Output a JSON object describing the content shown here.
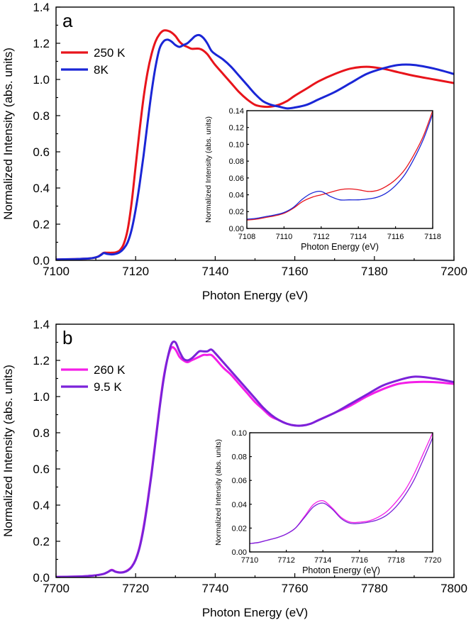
{
  "chart_data": [
    {
      "id": "a-main",
      "type": "line",
      "panel_label": "a",
      "xlabel": "Photon Energy (eV)",
      "ylabel": "Normalized Intensity (abs. units)",
      "xlim": [
        7100,
        7200
      ],
      "ylim": [
        0,
        1.4
      ],
      "xticks": [
        7100,
        7120,
        7140,
        7160,
        7180,
        7200
      ],
      "yticks": [
        0.0,
        0.2,
        0.4,
        0.6,
        0.8,
        1.0,
        1.2,
        1.4
      ],
      "xtick_labels": [
        "7100",
        "7120",
        "7140",
        "7160",
        "7180",
        "7200"
      ],
      "ytick_labels": [
        "0.0",
        "0.2",
        "0.4",
        "0.6",
        "0.8",
        "1.0",
        "1.2",
        "1.4"
      ],
      "legend": "upper-left",
      "series": [
        {
          "name": "250 K",
          "color": "#e8141b",
          "x": [
            7100,
            7106,
            7109,
            7110.5,
            7111.5,
            7112,
            7113,
            7114,
            7115,
            7116,
            7117,
            7118,
            7119,
            7120,
            7121,
            7122,
            7123,
            7124,
            7125,
            7126,
            7127,
            7128,
            7129,
            7130,
            7131,
            7132,
            7133,
            7134,
            7135,
            7136,
            7137,
            7138,
            7139,
            7140,
            7142,
            7144,
            7146,
            7148,
            7150,
            7152,
            7154,
            7156,
            7158,
            7160,
            7163,
            7166,
            7170,
            7174,
            7178,
            7182,
            7186,
            7190,
            7195,
            7200
          ],
          "values": [
            0.005,
            0.008,
            0.012,
            0.02,
            0.035,
            0.042,
            0.042,
            0.042,
            0.044,
            0.055,
            0.09,
            0.17,
            0.32,
            0.52,
            0.72,
            0.9,
            1.04,
            1.14,
            1.21,
            1.25,
            1.27,
            1.27,
            1.26,
            1.24,
            1.21,
            1.19,
            1.18,
            1.17,
            1.17,
            1.17,
            1.16,
            1.14,
            1.11,
            1.08,
            1.03,
            0.98,
            0.93,
            0.89,
            0.86,
            0.85,
            0.85,
            0.86,
            0.88,
            0.91,
            0.95,
            0.99,
            1.03,
            1.06,
            1.07,
            1.06,
            1.04,
            1.02,
            1.0,
            0.98
          ]
        },
        {
          "name": "8K",
          "color": "#1a26d6",
          "x": [
            7100,
            7106,
            7109,
            7110.5,
            7111.5,
            7112,
            7113,
            7114,
            7115,
            7116,
            7117,
            7118,
            7119,
            7120,
            7121,
            7122,
            7123,
            7124,
            7125,
            7126,
            7127,
            7128,
            7129,
            7130,
            7131,
            7132,
            7133,
            7134,
            7135,
            7136,
            7137,
            7138,
            7139,
            7140,
            7142,
            7144,
            7146,
            7148,
            7150,
            7152,
            7154,
            7156,
            7158,
            7160,
            7163,
            7166,
            7170,
            7174,
            7178,
            7182,
            7186,
            7190,
            7195,
            7200
          ],
          "values": [
            0.005,
            0.008,
            0.012,
            0.02,
            0.033,
            0.04,
            0.035,
            0.033,
            0.036,
            0.045,
            0.065,
            0.1,
            0.17,
            0.28,
            0.42,
            0.58,
            0.76,
            0.93,
            1.07,
            1.17,
            1.21,
            1.22,
            1.21,
            1.19,
            1.18,
            1.19,
            1.2,
            1.22,
            1.24,
            1.245,
            1.23,
            1.2,
            1.16,
            1.14,
            1.11,
            1.07,
            1.02,
            0.97,
            0.92,
            0.88,
            0.86,
            0.85,
            0.84,
            0.845,
            0.86,
            0.89,
            0.93,
            0.98,
            1.03,
            1.06,
            1.08,
            1.08,
            1.06,
            1.03
          ]
        }
      ]
    },
    {
      "id": "a-inset",
      "type": "line",
      "xlabel": "Photon Energy (eV)",
      "ylabel": "Normalized Intensity (abs. units)",
      "xlim": [
        7108,
        7118
      ],
      "ylim": [
        0,
        0.14
      ],
      "xticks": [
        7108,
        7110,
        7112,
        7114,
        7116,
        7118
      ],
      "yticks": [
        0.0,
        0.02,
        0.04,
        0.06,
        0.08,
        0.1,
        0.12,
        0.14
      ],
      "xtick_labels": [
        "7108",
        "7110",
        "7112",
        "7114",
        "7116",
        "7118"
      ],
      "ytick_labels": [
        "0.00",
        "0.02",
        "0.04",
        "0.06",
        "0.08",
        "0.10",
        "0.12",
        "0.14"
      ],
      "series": [
        {
          "name": "250 K",
          "color": "#e8141b",
          "x": [
            7108,
            7108.5,
            7109,
            7109.5,
            7110,
            7110.5,
            7111,
            7111.5,
            7112,
            7112.5,
            7113,
            7113.5,
            7114,
            7114.5,
            7115,
            7115.5,
            7116,
            7116.5,
            7117,
            7117.5,
            7118
          ],
          "values": [
            0.01,
            0.011,
            0.013,
            0.015,
            0.018,
            0.024,
            0.032,
            0.037,
            0.04,
            0.043,
            0.046,
            0.047,
            0.046,
            0.044,
            0.045,
            0.05,
            0.058,
            0.07,
            0.088,
            0.11,
            0.14
          ]
        },
        {
          "name": "8K",
          "color": "#1a26d6",
          "x": [
            7108,
            7108.5,
            7109,
            7109.5,
            7110,
            7110.5,
            7111,
            7111.5,
            7112,
            7112.5,
            7113,
            7113.5,
            7114,
            7114.5,
            7115,
            7115.5,
            7116,
            7116.5,
            7117,
            7117.5,
            7118
          ],
          "values": [
            0.011,
            0.012,
            0.014,
            0.016,
            0.019,
            0.025,
            0.035,
            0.042,
            0.044,
            0.038,
            0.034,
            0.034,
            0.034,
            0.035,
            0.037,
            0.042,
            0.051,
            0.064,
            0.083,
            0.106,
            0.136
          ]
        }
      ]
    },
    {
      "id": "b-main",
      "type": "line",
      "panel_label": "b",
      "xlabel": "Photon Energy (eV)",
      "ylabel": "Normalized Intensity (abs. units)",
      "xlim": [
        7700,
        7800
      ],
      "ylim": [
        0,
        1.4
      ],
      "xticks": [
        7700,
        7720,
        7740,
        7760,
        7780,
        7800
      ],
      "yticks": [
        0.0,
        0.2,
        0.4,
        0.6,
        0.8,
        1.0,
        1.2,
        1.4
      ],
      "xtick_labels": [
        "7700",
        "7720",
        "7740",
        "7760",
        "7780",
        "7800"
      ],
      "ytick_labels": [
        "0.0",
        "0.2",
        "0.4",
        "0.6",
        "0.8",
        "1.0",
        "1.2",
        "1.4"
      ],
      "legend": "upper-left",
      "series": [
        {
          "name": "260 K",
          "color": "#f41ee8",
          "x": [
            7700,
            7705,
            7708,
            7710,
            7712,
            7713,
            7714,
            7715,
            7716,
            7717,
            7718,
            7719,
            7720,
            7721,
            7722,
            7723,
            7724,
            7725,
            7726,
            7727,
            7728,
            7729,
            7730,
            7731,
            7732,
            7733,
            7734,
            7735,
            7736,
            7737,
            7738,
            7739,
            7740,
            7742,
            7744,
            7746,
            7748,
            7750,
            7752,
            7754,
            7756,
            7758,
            7760,
            7762,
            7764,
            7766,
            7770,
            7774,
            7778,
            7782,
            7786,
            7790,
            7795,
            7800
          ],
          "values": [
            0.003,
            0.005,
            0.008,
            0.012,
            0.02,
            0.03,
            0.042,
            0.032,
            0.028,
            0.03,
            0.04,
            0.06,
            0.1,
            0.17,
            0.28,
            0.42,
            0.58,
            0.76,
            0.94,
            1.1,
            1.21,
            1.27,
            1.26,
            1.22,
            1.2,
            1.19,
            1.2,
            1.21,
            1.22,
            1.23,
            1.23,
            1.23,
            1.21,
            1.16,
            1.12,
            1.07,
            1.02,
            0.97,
            0.93,
            0.89,
            0.87,
            0.85,
            0.84,
            0.84,
            0.85,
            0.87,
            0.91,
            0.95,
            1.0,
            1.04,
            1.07,
            1.08,
            1.08,
            1.07
          ]
        },
        {
          "name": "9.5 K",
          "color": "#7b22d9",
          "x": [
            7700,
            7705,
            7708,
            7710,
            7712,
            7713,
            7714,
            7715,
            7716,
            7717,
            7718,
            7719,
            7720,
            7721,
            7722,
            7723,
            7724,
            7725,
            7726,
            7727,
            7728,
            7729,
            7730,
            7731,
            7732,
            7733,
            7734,
            7735,
            7736,
            7737,
            7738,
            7739,
            7740,
            7742,
            7744,
            7746,
            7748,
            7750,
            7752,
            7754,
            7756,
            7758,
            7760,
            7762,
            7764,
            7766,
            7770,
            7774,
            7778,
            7782,
            7786,
            7790,
            7795,
            7800
          ],
          "values": [
            0.003,
            0.005,
            0.008,
            0.012,
            0.02,
            0.03,
            0.04,
            0.031,
            0.027,
            0.029,
            0.038,
            0.058,
            0.097,
            0.165,
            0.27,
            0.41,
            0.57,
            0.75,
            0.93,
            1.09,
            1.21,
            1.29,
            1.3,
            1.25,
            1.21,
            1.2,
            1.21,
            1.23,
            1.25,
            1.25,
            1.25,
            1.26,
            1.24,
            1.19,
            1.14,
            1.09,
            1.04,
            0.99,
            0.94,
            0.9,
            0.87,
            0.85,
            0.84,
            0.84,
            0.85,
            0.87,
            0.91,
            0.96,
            1.01,
            1.06,
            1.09,
            1.11,
            1.1,
            1.08
          ]
        }
      ]
    },
    {
      "id": "b-inset",
      "type": "line",
      "xlabel": "Photon Energy (eV)",
      "ylabel": "Normalized Intensity (abs. units)",
      "xlim": [
        7710,
        7720
      ],
      "ylim": [
        0,
        0.1
      ],
      "xticks": [
        7710,
        7712,
        7714,
        7716,
        7718,
        7720
      ],
      "yticks": [
        0.0,
        0.02,
        0.04,
        0.06,
        0.08,
        0.1
      ],
      "xtick_labels": [
        "7710",
        "7712",
        "7714",
        "7716",
        "7718",
        "7720"
      ],
      "ytick_labels": [
        "0.00",
        "0.02",
        "0.04",
        "0.06",
        "0.08",
        "0.10"
      ],
      "series": [
        {
          "name": "260 K",
          "color": "#f41ee8",
          "x": [
            7710,
            7710.5,
            7711,
            7711.5,
            7712,
            7712.5,
            7713,
            7713.5,
            7714,
            7714.5,
            7715,
            7715.5,
            7716,
            7716.5,
            7717,
            7717.5,
            7718,
            7718.5,
            7719,
            7719.5,
            7720
          ],
          "values": [
            0.007,
            0.008,
            0.01,
            0.012,
            0.015,
            0.02,
            0.03,
            0.04,
            0.043,
            0.037,
            0.029,
            0.025,
            0.025,
            0.026,
            0.029,
            0.034,
            0.042,
            0.052,
            0.066,
            0.083,
            0.1
          ]
        },
        {
          "name": "9.5 K",
          "color": "#7b22d9",
          "x": [
            7710,
            7710.5,
            7711,
            7711.5,
            7712,
            7712.5,
            7713,
            7713.5,
            7714,
            7714.5,
            7715,
            7715.5,
            7716,
            7716.5,
            7717,
            7717.5,
            7718,
            7718.5,
            7719,
            7719.5,
            7720
          ],
          "values": [
            0.007,
            0.008,
            0.01,
            0.012,
            0.015,
            0.02,
            0.029,
            0.038,
            0.041,
            0.036,
            0.028,
            0.024,
            0.024,
            0.025,
            0.027,
            0.031,
            0.038,
            0.048,
            0.061,
            0.078,
            0.096
          ]
        }
      ]
    }
  ]
}
